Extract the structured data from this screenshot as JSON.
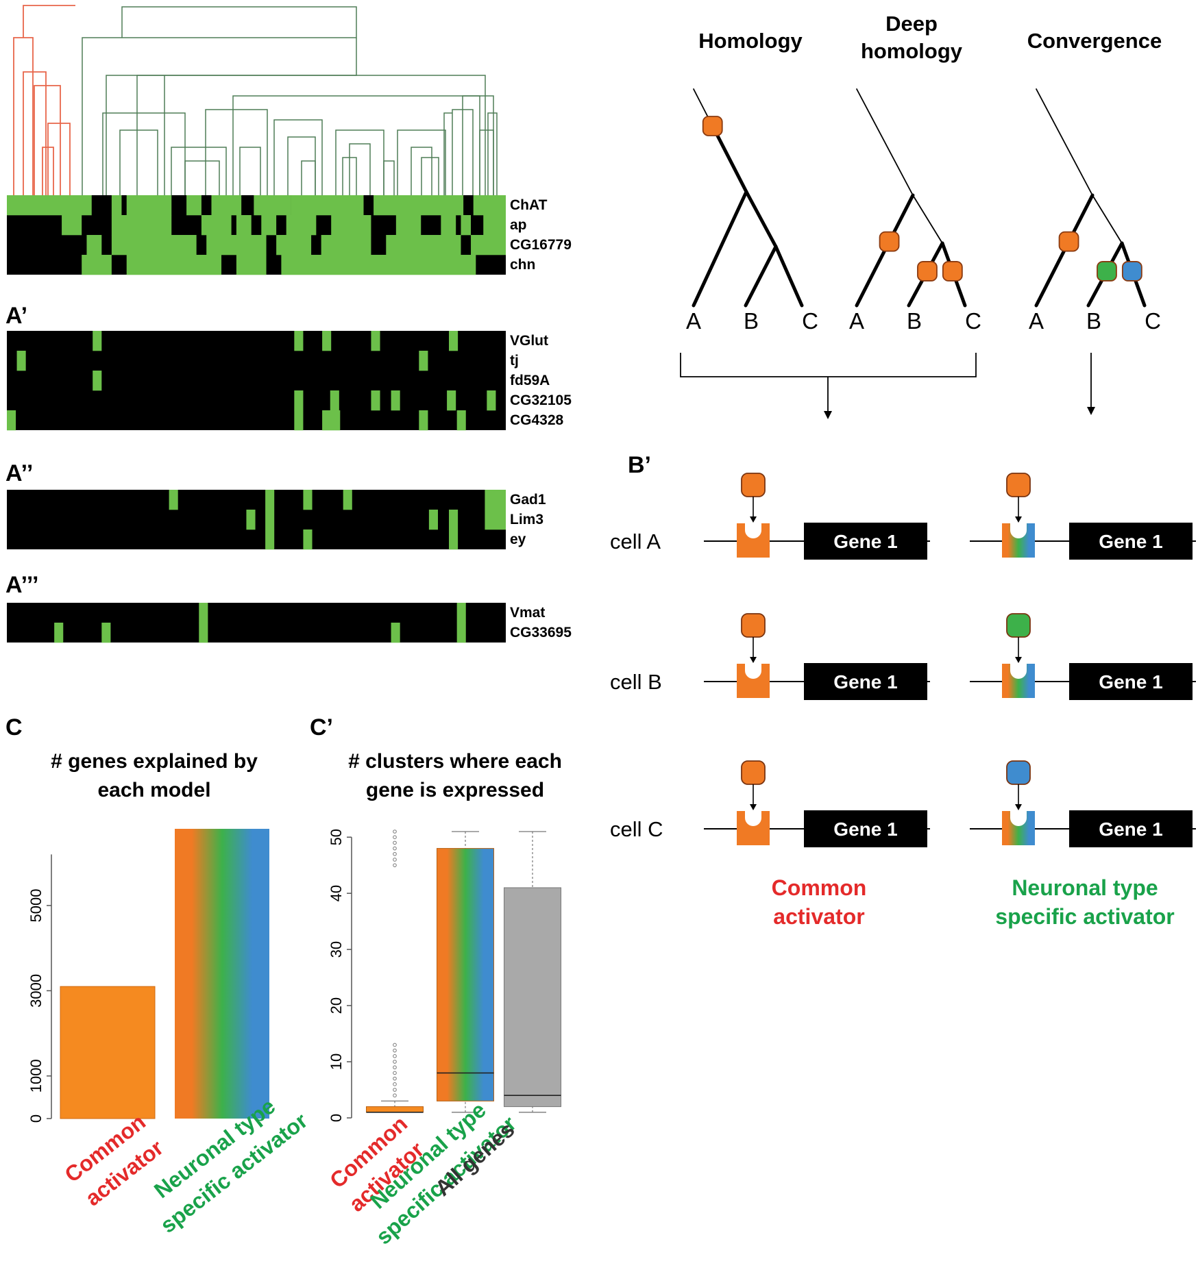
{
  "panel_labels": {
    "a1": "A’",
    "a2": "A’’",
    "a3": "A’’’",
    "b1": "B’",
    "c": "C",
    "c1": "C’"
  },
  "colors": {
    "on": "#6cc04a",
    "off": "#000000",
    "dendro_red": "#e8664a",
    "dendro_green": "#4e7d56",
    "orange": "#f07a24",
    "green": "#3db14a",
    "blue": "#3f8ccf",
    "gray": "#a9a9a9",
    "red_text": "#e42a2a",
    "green_text": "#19a24a",
    "gray_text": "#333333"
  },
  "heatmaps": [
    {
      "id": "A",
      "genes": [
        "ChAT",
        "ap",
        "CG16779",
        "chn"
      ],
      "rows": [
        [
          [
            0,
            0.17
          ],
          [
            0.21,
            0.23
          ],
          [
            0.24,
            0.33
          ],
          [
            0.36,
            0.39
          ],
          [
            0.41,
            0.47
          ],
          [
            0.495,
            0.57
          ],
          [
            0.57,
            0.715
          ],
          [
            0.735,
            0.915
          ],
          [
            0.935,
            1
          ]
        ],
        [
          [
            0.11,
            0.15
          ],
          [
            0.21,
            0.33
          ],
          [
            0.39,
            0.45
          ],
          [
            0.46,
            0.49
          ],
          [
            0.51,
            0.54
          ],
          [
            0.56,
            0.62
          ],
          [
            0.65,
            0.73
          ],
          [
            0.78,
            0.83
          ],
          [
            0.87,
            0.9
          ],
          [
            0.91,
            0.93
          ],
          [
            0.955,
            1
          ]
        ],
        [
          [
            0.16,
            0.19
          ],
          [
            0.21,
            0.38
          ],
          [
            0.4,
            0.52
          ],
          [
            0.54,
            0.61
          ],
          [
            0.63,
            0.73
          ],
          [
            0.76,
            0.91
          ],
          [
            0.93,
            1
          ]
        ],
        [
          [
            0.15,
            0.21
          ],
          [
            0.24,
            0.43
          ],
          [
            0.46,
            0.52
          ],
          [
            0.55,
            0.94
          ]
        ]
      ]
    },
    {
      "id": "A1",
      "genes": [
        "VGlut",
        "tj",
        "fd59A",
        "CG32105",
        "CG4328"
      ],
      "rows": [
        [
          [
            0.172,
            0.19
          ],
          [
            0.576,
            0.594
          ],
          [
            0.632,
            0.65
          ],
          [
            0.73,
            0.748
          ],
          [
            0.886,
            0.904
          ]
        ],
        [
          [
            0.02,
            0.038
          ],
          [
            0.826,
            0.844
          ]
        ],
        [
          [
            0.172,
            0.19
          ]
        ],
        [
          [
            0.576,
            0.594
          ],
          [
            0.648,
            0.666
          ],
          [
            0.73,
            0.748
          ],
          [
            0.77,
            0.788
          ],
          [
            0.882,
            0.9
          ],
          [
            0.962,
            0.98
          ]
        ],
        [
          [
            0,
            0.018
          ],
          [
            0.576,
            0.594
          ],
          [
            0.632,
            0.668
          ],
          [
            0.826,
            0.844
          ],
          [
            0.902,
            0.92
          ]
        ]
      ]
    },
    {
      "id": "A2",
      "genes": [
        "Gad1",
        "Lim3",
        "ey"
      ],
      "rows": [
        [
          [
            0.325,
            0.343
          ],
          [
            0.518,
            0.536
          ],
          [
            0.594,
            0.612
          ],
          [
            0.674,
            0.692
          ],
          [
            0.958,
            1
          ]
        ],
        [
          [
            0.48,
            0.498
          ],
          [
            0.518,
            0.536
          ],
          [
            0.846,
            0.864
          ],
          [
            0.886,
            0.904
          ],
          [
            0.958,
            1
          ]
        ],
        [
          [
            0.518,
            0.536
          ],
          [
            0.594,
            0.612
          ],
          [
            0.886,
            0.904
          ]
        ]
      ]
    },
    {
      "id": "A3",
      "genes": [
        "Vmat",
        "CG33695"
      ],
      "rows": [
        [
          [
            0.385,
            0.403
          ],
          [
            0.902,
            0.92
          ]
        ],
        [
          [
            0.095,
            0.113
          ],
          [
            0.19,
            0.208
          ],
          [
            0.385,
            0.403
          ],
          [
            0.77,
            0.788
          ],
          [
            0.902,
            0.92
          ]
        ]
      ]
    }
  ],
  "trees": {
    "headers": [
      {
        "lines": [
          "Homology"
        ]
      },
      {
        "lines": [
          "Deep",
          "homology"
        ]
      },
      {
        "lines": [
          "Convergence"
        ]
      }
    ],
    "leaves": [
      "A",
      "B",
      "C"
    ],
    "models": [
      {
        "thick": [
          "a",
          "ab",
          "b",
          "bc",
          "c"
        ],
        "marks": [
          {
            "on": "stem",
            "t": 0.36,
            "color": "orange"
          }
        ]
      },
      {
        "thick": [
          "a",
          "b",
          "c"
        ],
        "marks": [
          {
            "on": "a",
            "t": 0.42,
            "color": "orange"
          },
          {
            "on": "b",
            "t": 0.45,
            "color": "orange"
          },
          {
            "on": "c",
            "t": 0.45,
            "color": "orange"
          }
        ]
      },
      {
        "thick": [
          "a",
          "b",
          "c"
        ],
        "marks": [
          {
            "on": "a",
            "t": 0.42,
            "color": "orange"
          },
          {
            "on": "b",
            "t": 0.45,
            "color": "green"
          },
          {
            "on": "c",
            "t": 0.45,
            "color": "blue"
          }
        ]
      }
    ]
  },
  "regulation": {
    "cells": [
      "cell A",
      "cell B",
      "cell C"
    ],
    "gene_label": "Gene 1",
    "left_colors": [
      "orange",
      "orange",
      "orange"
    ],
    "right_colors": [
      "orange",
      "green",
      "blue"
    ],
    "left_caption": [
      "Common",
      "activator"
    ],
    "right_caption": [
      "Neuronal type",
      "specific activator"
    ]
  },
  "bar_chart": {
    "title_lines": [
      "# genes explained by",
      "each model"
    ],
    "chart_data": {
      "type": "bar",
      "categories": [
        "Common activator",
        "Neuronal type specific activator"
      ],
      "values": [
        3100,
        6800
      ],
      "yticks": [
        0,
        1000,
        3000,
        5000
      ],
      "ylim": [
        0,
        6800
      ]
    },
    "category_labels": [
      {
        "lines": [
          "Common",
          "activator"
        ],
        "color": "red_text"
      },
      {
        "lines": [
          "Neuronal type",
          "specific activator"
        ],
        "color": "green_text"
      }
    ]
  },
  "box_chart": {
    "title_lines": [
      "# clusters where each",
      "gene is expressed"
    ],
    "chart_data": {
      "type": "box",
      "categories": [
        "Common activator",
        "Neuronal type specific activator",
        "All genes"
      ],
      "boxes": [
        {
          "min": 1,
          "q1": 1,
          "median": 1,
          "q3": 2,
          "max": 3,
          "outliers": [
            4,
            5,
            6,
            7,
            8,
            9,
            10,
            11,
            12,
            13,
            45,
            46,
            47,
            48,
            49,
            50,
            51
          ]
        },
        {
          "min": 1,
          "q1": 3,
          "median": 8,
          "q3": 48,
          "max": 51,
          "outliers": []
        },
        {
          "min": 1,
          "q1": 2,
          "median": 4,
          "q3": 41,
          "max": 51,
          "outliers": []
        }
      ],
      "yticks": [
        0,
        10,
        20,
        30,
        40,
        50
      ],
      "ylim": [
        0,
        51
      ]
    },
    "category_labels": [
      {
        "lines": [
          "Common",
          "activator"
        ],
        "color": "red_text"
      },
      {
        "lines": [
          "Neuronal type",
          "specific activator"
        ],
        "color": "green_text"
      },
      {
        "lines": [
          "All genes"
        ],
        "color": "gray_text"
      }
    ]
  }
}
